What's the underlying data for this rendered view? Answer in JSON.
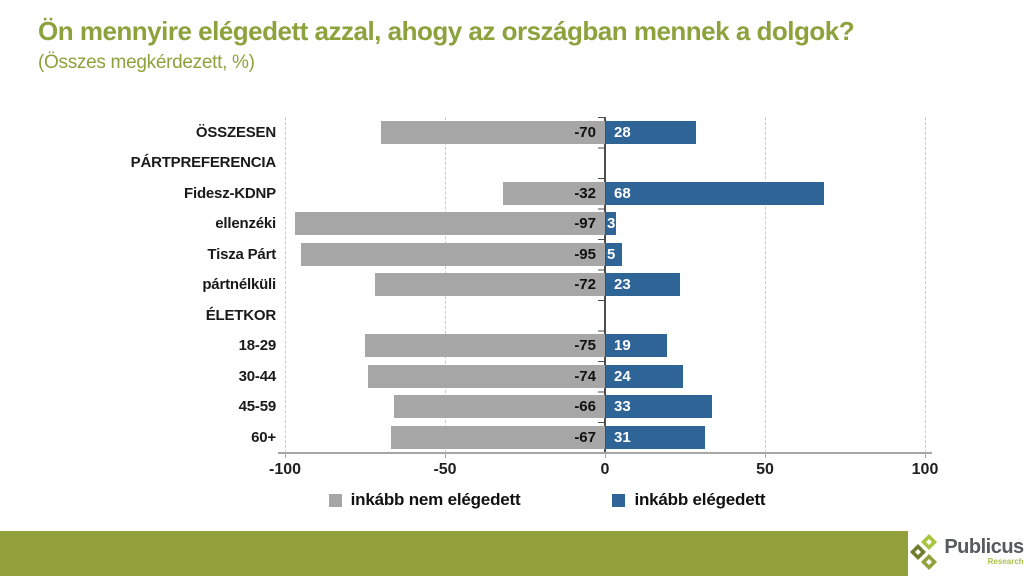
{
  "title": "Ön mennyire elégedett azzal, ahogy az országban mennek a dolgok?",
  "subtitle": "(Összes megkérdezett, %)",
  "colors": {
    "title_green": "#8CA23C",
    "bar_gray": "#A6A6A6",
    "bar_blue": "#2F6496",
    "footer_green": "#93A13C",
    "grid_dash": "#C9C9C9",
    "zero_axis": "#4D4D4D"
  },
  "chart_data": {
    "type": "bar",
    "orientation": "horizontal-diverging",
    "title": "Ön mennyire elégedett azzal, ahogy az országban mennek a dolgok?",
    "subtitle": "(Összes megkérdezett, %)",
    "xlim": [
      -100,
      100
    ],
    "x_ticks": [
      "-100",
      "-50",
      "0",
      "50",
      "100"
    ],
    "x_tick_values": [
      -100,
      -50,
      0,
      50,
      100
    ],
    "gridlines_dashed_at": [
      -100,
      -50,
      50,
      100
    ],
    "legend_position": "bottom",
    "series": [
      {
        "name": "inkább nem elégedett",
        "color": "#A6A6A6"
      },
      {
        "name": "inkább elégedett",
        "color": "#2F6496"
      }
    ],
    "rows": [
      {
        "label": "ÖSSZESEN",
        "neg": -70,
        "pos": 28
      },
      {
        "label": "PÁRTPREFERENCIA",
        "neg": null,
        "pos": null
      },
      {
        "label": "Fidesz-KDNP",
        "neg": -32,
        "pos": 68
      },
      {
        "label": "ellenzéki",
        "neg": -97,
        "pos": 3
      },
      {
        "label": "Tisza Párt",
        "neg": -95,
        "pos": 5
      },
      {
        "label": "pártnélküli",
        "neg": -72,
        "pos": 23
      },
      {
        "label": "ÉLETKOR",
        "neg": null,
        "pos": null
      },
      {
        "label": "18-29",
        "neg": -75,
        "pos": 19
      },
      {
        "label": "30-44",
        "neg": -74,
        "pos": 24
      },
      {
        "label": "45-59",
        "neg": -66,
        "pos": 33
      },
      {
        "label": "60+",
        "neg": -67,
        "pos": 31
      }
    ]
  },
  "legend": {
    "items": [
      {
        "label": "inkább nem elégedett",
        "color": "#A6A6A6"
      },
      {
        "label": "inkább elégedett",
        "color": "#2F6496"
      }
    ]
  },
  "footer": {
    "brand": "Publicus",
    "brand_sub": "Research"
  }
}
